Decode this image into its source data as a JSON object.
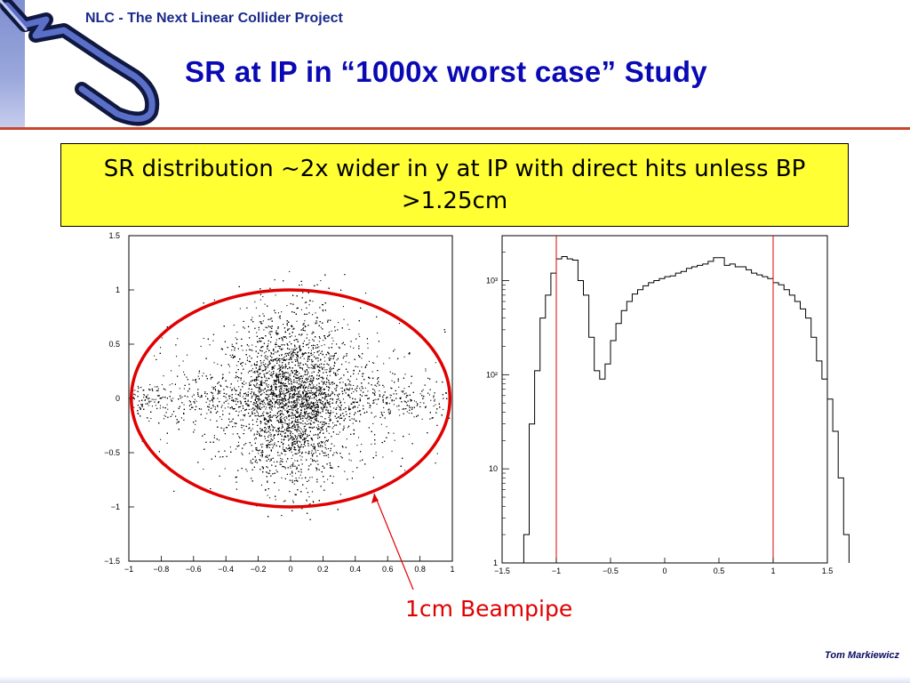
{
  "header": {
    "project": "NLC - The Next Linear Collider Project",
    "title": "SR at IP in “1000x worst case” Study"
  },
  "callout": {
    "text": "SR distribution ~2x wider in y at IP with direct hits unless BP >1.25cm"
  },
  "annotation": {
    "label": "1cm Beampipe"
  },
  "footer": {
    "author": "Tom Markiewicz"
  },
  "colors": {
    "title": "#0a0ab4",
    "callout_bg": "#ffff33",
    "accent_red": "#e00000",
    "rule": "#c8462c"
  },
  "chart_data": [
    {
      "type": "scatter",
      "title": "",
      "xlabel": "",
      "ylabel": "",
      "xlim": [
        -1,
        1
      ],
      "ylim": [
        -1.5,
        1.5
      ],
      "x_ticks": [
        "−1",
        "−0.8",
        "−0.6",
        "−0.4",
        "−0.2",
        "0",
        "0.2",
        "0.4",
        "0.6",
        "0.8",
        "1"
      ],
      "y_ticks": [
        "1.5",
        "1",
        "0.5",
        "0",
        "−0.5",
        "−1",
        "−1.5"
      ],
      "y_tick_values": [
        1.5,
        1,
        0.5,
        0,
        -0.5,
        -1,
        -1.5
      ],
      "x_tick_values": [
        -1,
        -0.8,
        -0.6,
        -0.4,
        -0.2,
        0,
        0.2,
        0.4,
        0.6,
        0.8,
        1
      ],
      "overlay_ellipse": {
        "center": [
          0,
          0
        ],
        "rx": 1.0,
        "ry": 1.0
      },
      "grid": false
    },
    {
      "type": "histogram",
      "title": "",
      "xlabel": "",
      "ylabel": "",
      "xlim": [
        -1.5,
        1.5
      ],
      "ylim": [
        1,
        3000
      ],
      "log_y": true,
      "x_ticks": [
        "−1.5",
        "−1",
        "−0.5",
        "0",
        "0.5",
        "1",
        "1.5"
      ],
      "x_tick_values": [
        -1.5,
        -1,
        -0.5,
        0,
        0.5,
        1,
        1.5
      ],
      "y_ticks": [
        "10³",
        "10²",
        "10",
        "1"
      ],
      "y_tick_values": [
        1000,
        100,
        10,
        1
      ],
      "bin_edges_start": -1.3,
      "bin_width": 0.05,
      "values": [
        2,
        30,
        110,
        400,
        700,
        1200,
        1700,
        1800,
        1700,
        1650,
        1000,
        700,
        250,
        110,
        90,
        130,
        230,
        350,
        480,
        600,
        720,
        800,
        880,
        950,
        1000,
        1050,
        1100,
        1120,
        1200,
        1250,
        1350,
        1400,
        1450,
        1500,
        1600,
        1750,
        1750,
        1450,
        1500,
        1400,
        1400,
        1300,
        1200,
        1150,
        1100,
        1050,
        950,
        900,
        800,
        700,
        600,
        500,
        400,
        250,
        140,
        90,
        55,
        25,
        8,
        2
      ],
      "vertical_lines": [
        -1,
        1
      ],
      "grid": false
    }
  ]
}
